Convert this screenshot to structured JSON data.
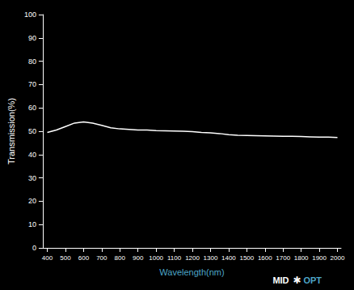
{
  "chart_data": {
    "type": "line",
    "xlabel": "Wavelength(nm)",
    "ylabel": "Transmission(%)",
    "x": [
      400,
      450,
      500,
      550,
      600,
      650,
      700,
      750,
      800,
      850,
      900,
      950,
      1000,
      1050,
      1100,
      1150,
      1200,
      1250,
      1300,
      1350,
      1400,
      1450,
      1500,
      1550,
      1600,
      1650,
      1700,
      1750,
      1800,
      1850,
      1900,
      1950,
      2000
    ],
    "values": [
      49.5,
      50.5,
      52.0,
      53.5,
      54.0,
      53.5,
      52.5,
      51.5,
      51.0,
      50.8,
      50.5,
      50.5,
      50.3,
      50.2,
      50.1,
      50.0,
      49.8,
      49.5,
      49.3,
      49.0,
      48.5,
      48.3,
      48.2,
      48.1,
      48.0,
      47.9,
      47.8,
      47.8,
      47.7,
      47.6,
      47.5,
      47.5,
      47.3
    ],
    "color": "#ffffff",
    "xlim": [
      375,
      2020
    ],
    "ylim": [
      0,
      100
    ],
    "xticks": [
      400,
      500,
      600,
      700,
      800,
      900,
      1000,
      1100,
      1200,
      1300,
      1400,
      1500,
      1600,
      1700,
      1800,
      1900,
      2000
    ],
    "yticks": [
      0,
      10,
      20,
      30,
      40,
      50,
      60,
      70,
      80,
      90,
      100
    ],
    "grid": false,
    "annotations": [
      {
        "text": "MID",
        "color": "#ffffff"
      },
      {
        "text": "✱",
        "color": "#ffffff"
      },
      {
        "text": "OPT",
        "color": "#4da6c8"
      }
    ]
  }
}
